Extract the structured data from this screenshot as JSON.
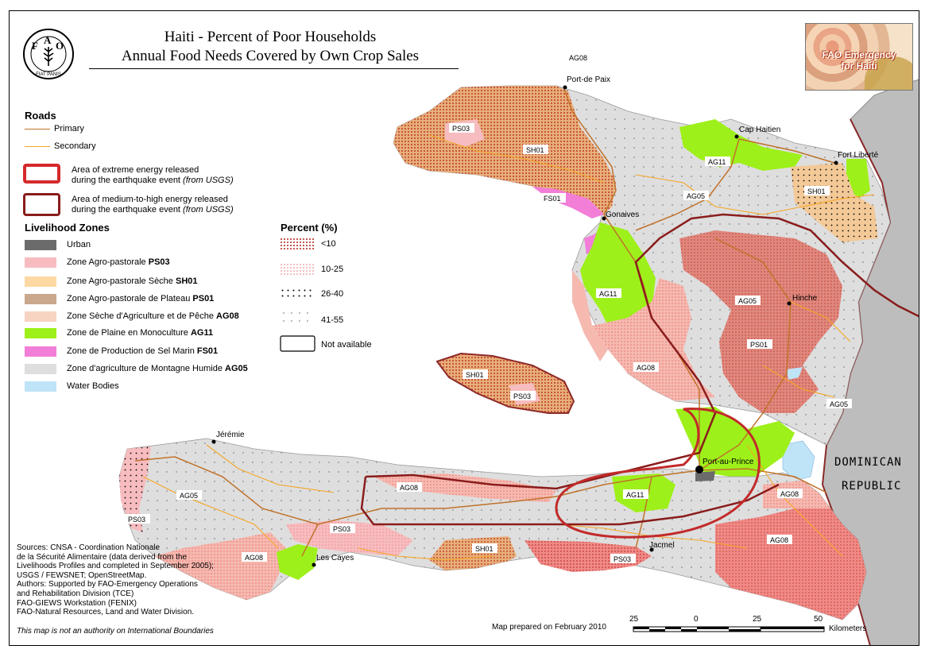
{
  "title": {
    "line1": "Haiti - Percent of Poor Households",
    "line2": "Annual Food Needs Covered by Own Crop Sales"
  },
  "logo_text": "FIAT PANIS",
  "badge": {
    "line1": "FAO Emergency",
    "line2": "for Haiti"
  },
  "roads": {
    "heading": "Roads",
    "primary": "Primary",
    "secondary": "Secondary",
    "primary_color": "#c0722a",
    "secondary_color": "#f5a623"
  },
  "energy": {
    "extreme": {
      "line1": "Area of extreme energy released",
      "line2a": "during the earthquake event ",
      "line2b": "(from USGS)",
      "color": "#d42a2a"
    },
    "medium": {
      "line1": "Area of medium-to-high energy released",
      "line2a": "during the earthquake event ",
      "line2b": "(from USGS)",
      "color": "#8a1c1c"
    }
  },
  "livelihood": {
    "heading": "Livelihood Zones",
    "items": [
      {
        "label": "Urban",
        "code": "",
        "color": "#6b6b6b"
      },
      {
        "label": "Zone Agro-pastorale ",
        "code": "PS03",
        "color": "#f7bcbf"
      },
      {
        "label": "Zone Agro-pastorale Sèche ",
        "code": "SH01",
        "color": "#fcd9a2"
      },
      {
        "label": "Zone Agro-pastorale de Plateau ",
        "code": "PS01",
        "color": "#c9a88d"
      },
      {
        "label": "Zone Sèche d'Agriculture et de Pêche ",
        "code": "AG08",
        "color": "#f7d3c2"
      },
      {
        "label": "Zone de Plaine en Monoculture ",
        "code": "AG11",
        "color": "#9ef01a"
      },
      {
        "label": "Zone de Production de Sel Marin ",
        "code": "FS01",
        "color": "#f27ed8"
      },
      {
        "label": "Zone d'agriculture de Montagne Humide ",
        "code": "AG05",
        "color": "#dedede"
      },
      {
        "label": "Water Bodies",
        "code": "",
        "color": "#bfe3f7"
      }
    ]
  },
  "percent": {
    "heading": "Percent (%)",
    "classes": [
      "<10",
      "10-25",
      "26-40",
      "41-55",
      "Not available"
    ]
  },
  "map_labels": {
    "zones": [
      "AG08",
      "PS03",
      "SH01",
      "FS01",
      "AG11",
      "AG05",
      "SH01",
      "AG11",
      "AG05",
      "PS01",
      "AG08",
      "SH01",
      "PS03",
      "AG05",
      "AG05",
      "PS03",
      "AG08",
      "AG08",
      "PS03",
      "SH01",
      "PS03",
      "AG11",
      "AG08",
      "AG08"
    ],
    "cities": [
      "Port-de Paix",
      "Cap Haitien",
      "Fort Liberté",
      "Gonaives",
      "Hinche",
      "Jérémie",
      "Port-au-Prince",
      "Les Cayes",
      "Jacmel"
    ],
    "country_line1": "DOMINICAN",
    "country_line2": "REPUBLIC"
  },
  "sources": {
    "lines": [
      "Sources: CNSA - Coordination Nationale",
      "de la Sécurité Alimentaire (data derived from the",
      "Livelihoods Profiles and completed in September 2005);",
      "USGS / FEWSNET; OpenStreetMap.",
      "Authors:  Supported by FAO-Emergency Operations",
      "and  Rehabilitation Division (TCE)",
      "FAO-GIEWS Workstation (FENIX)",
      "FAO-Natural Resources, Land and Water Division."
    ]
  },
  "disclaimer": "This map is not an authority on International Boundaries",
  "prepared": "Map prepared on February 2010",
  "scalebar": {
    "ticks": [
      "25",
      "0",
      "25",
      "50"
    ],
    "unit": "Kilometers"
  }
}
